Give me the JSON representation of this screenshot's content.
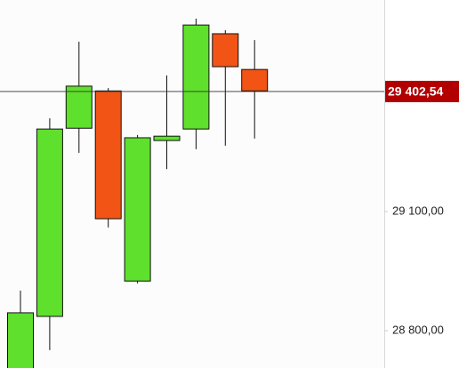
{
  "chart_data": {
    "type": "candlestick",
    "categories": [
      null,
      null,
      null,
      null,
      null,
      null,
      null,
      null,
      null
    ],
    "open": [
      28700,
      28836,
      29310,
      29404,
      28925,
      29279,
      29308,
      29548,
      29458
    ],
    "high": [
      28901,
      29335,
      29528,
      29411,
      29293,
      29443,
      29586,
      29557,
      29532
    ],
    "low": [
      28690,
      28751,
      29248,
      29060,
      28919,
      29207,
      29257,
      29266,
      29284
    ],
    "close": [
      28845,
      29308,
      29416,
      29082,
      29286,
      29290,
      29570,
      29465,
      29404
    ],
    "up_color": "#5ee02c",
    "down_color": "#f25416",
    "ylim": [
      28706,
      29633
    ],
    "yticks": [
      {
        "value": 28800,
        "label": "28 800,00"
      },
      {
        "value": 29100,
        "label": "29 100,00"
      }
    ],
    "price_line": {
      "value": 29402.54,
      "label": "29 402,54",
      "color": "#b20000"
    }
  }
}
